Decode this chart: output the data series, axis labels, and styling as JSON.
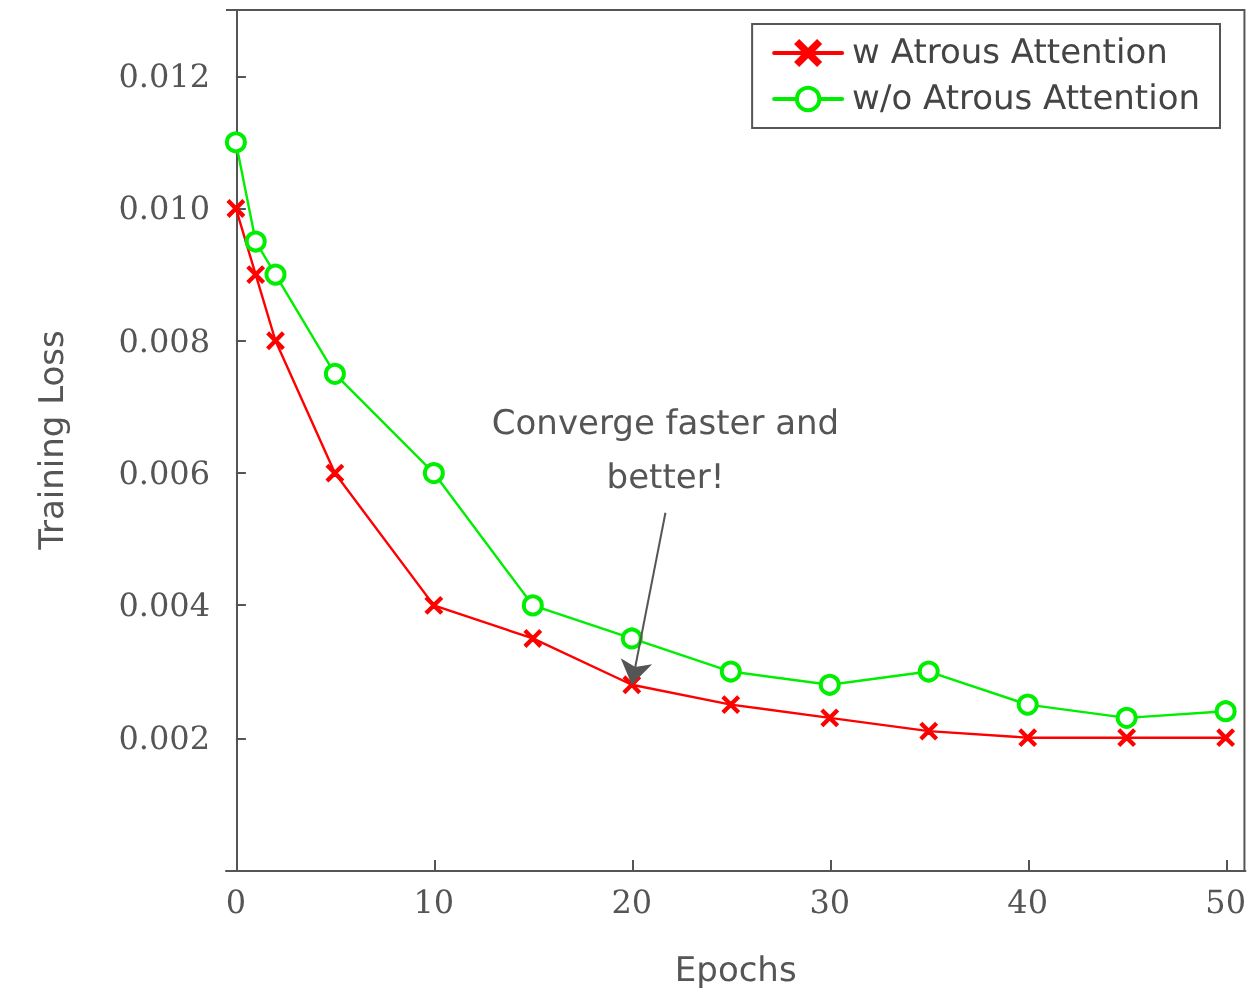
{
  "chart_data": {
    "type": "line",
    "xlabel": "Epochs",
    "ylabel": "Training Loss",
    "x": [
      0,
      1,
      2,
      5,
      10,
      15,
      20,
      25,
      30,
      35,
      40,
      45,
      50
    ],
    "series": [
      {
        "name": "w Atrous Attention",
        "color": "#ff0000",
        "marker": "cross",
        "values": [
          0.01,
          0.009,
          0.008,
          0.006,
          0.004,
          0.0035,
          0.0028,
          0.0025,
          0.0023,
          0.0021,
          0.002,
          0.002,
          0.002
        ]
      },
      {
        "name": "w/o Atrous Attention",
        "color": "#00ee00",
        "marker": "circle",
        "values": [
          0.011,
          0.0095,
          0.009,
          0.0075,
          0.006,
          0.004,
          0.0035,
          0.003,
          0.0028,
          0.003,
          0.0025,
          0.0023,
          0.0024
        ]
      }
    ],
    "xlim": [
      -0.5,
      51
    ],
    "ylim": [
      0,
      0.013
    ],
    "xticks": [
      0,
      10,
      20,
      30,
      40,
      50
    ],
    "yticks": [
      0.002,
      0.004,
      0.006,
      0.008,
      {
        "value": 0.01,
        "label": "0.010"
      },
      0.012
    ],
    "grid": false,
    "legend": "top right",
    "line_style": "solid",
    "annotations": [
      {
        "text": "Converge faster and\nbetter!",
        "x": 20,
        "y": 0.0028
      }
    ]
  }
}
